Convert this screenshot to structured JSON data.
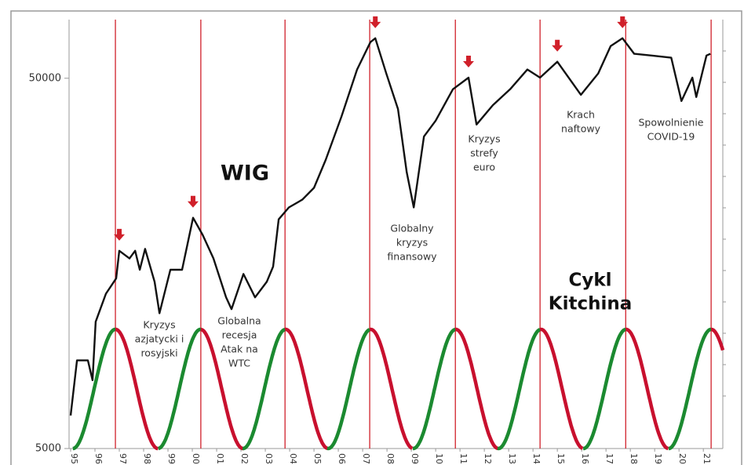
{
  "chart_data": {
    "type": "line",
    "title": "WIG",
    "log_y": true,
    "x": [
      1995.0,
      1995.26,
      1995.71,
      1995.9,
      1996.03,
      1996.45,
      1996.87,
      1997.0,
      1997.42,
      1997.65,
      1997.84,
      1998.06,
      1998.45,
      1998.65,
      1999.1,
      1999.58,
      2000.03,
      2000.42,
      2000.87,
      2001.39,
      2001.61,
      2002.1,
      2002.58,
      2003.06,
      2003.32,
      2003.55,
      2003.97,
      2004.52,
      2005.0,
      2005.48,
      2006.13,
      2006.77,
      2007.32,
      2007.52,
      2007.97,
      2008.45,
      2008.81,
      2009.1,
      2009.52,
      2010.0,
      2010.71,
      2011.35,
      2011.68,
      2012.35,
      2013.06,
      2013.77,
      2014.29,
      2015.0,
      2015.97,
      2016.68,
      2017.19,
      2017.68,
      2018.16,
      2018.87,
      2019.68,
      2020.1,
      2020.55,
      2020.71,
      2021.13,
      2021.29
    ],
    "series": [
      {
        "color": "#111111",
        "values": [
          6140,
          8650,
          8650,
          7650,
          11000,
          13100,
          14400,
          17100,
          16300,
          17100,
          15200,
          17300,
          14100,
          11600,
          15200,
          15200,
          21000,
          18900,
          16300,
          12800,
          11900,
          14800,
          12800,
          14100,
          15500,
          20800,
          22400,
          23500,
          25300,
          30100,
          39400,
          52800,
          62600,
          64100,
          51500,
          41300,
          27900,
          22400,
          34800,
          38400,
          46700,
          50200,
          37500,
          42300,
          46700,
          52800,
          50200,
          55400,
          45100,
          51500,
          61100,
          64100,
          58200,
          57600,
          56800,
          43400,
          50200,
          44500,
          57600,
          58200
        ]
      }
    ],
    "xlim": [
      1995,
      2021.8
    ],
    "xticks": [
      {
        "value": 1995,
        "label": "95"
      },
      {
        "value": 1996,
        "label": "96"
      },
      {
        "value": 1997,
        "label": "97"
      },
      {
        "value": 1998,
        "label": "98"
      },
      {
        "value": 1999,
        "label": "99"
      },
      {
        "value": 2000,
        "label": "00"
      },
      {
        "value": 2001,
        "label": "01"
      },
      {
        "value": 2002,
        "label": "02"
      },
      {
        "value": 2003,
        "label": "03"
      },
      {
        "value": 2004,
        "label": "04"
      },
      {
        "value": 2005,
        "label": "05"
      },
      {
        "value": 2006,
        "label": "06"
      },
      {
        "value": 2007,
        "label": "07"
      },
      {
        "value": 2008,
        "label": "08"
      },
      {
        "value": 2009,
        "label": "09"
      },
      {
        "value": 2010,
        "label": "10"
      },
      {
        "value": 2011,
        "label": "11"
      },
      {
        "value": 2012,
        "label": "12"
      },
      {
        "value": 2013,
        "label": "13"
      },
      {
        "value": 2014,
        "label": "14"
      },
      {
        "value": 2015,
        "label": "15"
      },
      {
        "value": 2016,
        "label": "16"
      },
      {
        "value": 2017,
        "label": "17"
      },
      {
        "value": 2018,
        "label": "18"
      },
      {
        "value": 2019,
        "label": "19"
      },
      {
        "value": 2020,
        "label": "20"
      },
      {
        "value": 2021,
        "label": "21"
      }
    ],
    "ylim": [
      5000,
      72000
    ],
    "yticks": [
      5000,
      50000
    ],
    "arrows": {
      "color": "#d0202a",
      "x": [
        1997.0,
        2000.03,
        2007.52,
        2011.35,
        2015.0,
        2017.68
      ],
      "y": [
        17100,
        21000,
        64100,
        50200,
        55400,
        64100
      ]
    },
    "cycle": {
      "label": [
        "Cykl",
        "Kitchina"
      ],
      "line_color": "#d0202a",
      "rise_color": "#1b8a30",
      "fall_color": "#c8102e",
      "peaks": [
        1996.84,
        2000.35,
        2003.81,
        2007.29,
        2010.81,
        2014.29,
        2017.81,
        2021.32
      ]
    },
    "annotations": [
      {
        "lines": [
          "Kryzys",
          "azjatycki i",
          "rosyjski"
        ]
      },
      {
        "lines": [
          "Globalna",
          "recesja",
          "Atak na",
          "WTC"
        ]
      },
      {
        "lines": [
          "Globalny",
          "kryzys",
          "finansowy"
        ]
      },
      {
        "lines": [
          "Kryzys",
          "strefy",
          "euro"
        ]
      },
      {
        "lines": [
          "Krach",
          "naftowy"
        ]
      },
      {
        "lines": [
          "Spowolnienie",
          "COVID-19"
        ]
      }
    ]
  }
}
